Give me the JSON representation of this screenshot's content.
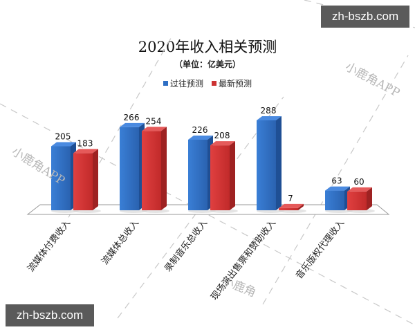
{
  "chart_data": {
    "type": "bar",
    "title": "2020年收入相关预测",
    "subtitle": "（单位：亿美元）",
    "xlabel": "",
    "ylabel": "",
    "categories": [
      "流媒体付费收入",
      "流媒体总收入",
      "录制音乐总收入",
      "现场演出售票和赞助收入",
      "音乐版权代理收入"
    ],
    "series": [
      {
        "name": "过往预测",
        "color": "#2e6fc4",
        "values": [
          205,
          266,
          226,
          288,
          63
        ]
      },
      {
        "name": "最新预测",
        "color": "#cc3333",
        "values": [
          183,
          254,
          208,
          7,
          60
        ]
      }
    ],
    "ylim": [
      0,
      300
    ],
    "grid": false,
    "legend_position": "top",
    "style": "3d-column"
  },
  "watermarks": {
    "text_app": "小鹿角APP",
    "text_partial": "小鹿角",
    "badge_text": "zh-bszb.com"
  }
}
